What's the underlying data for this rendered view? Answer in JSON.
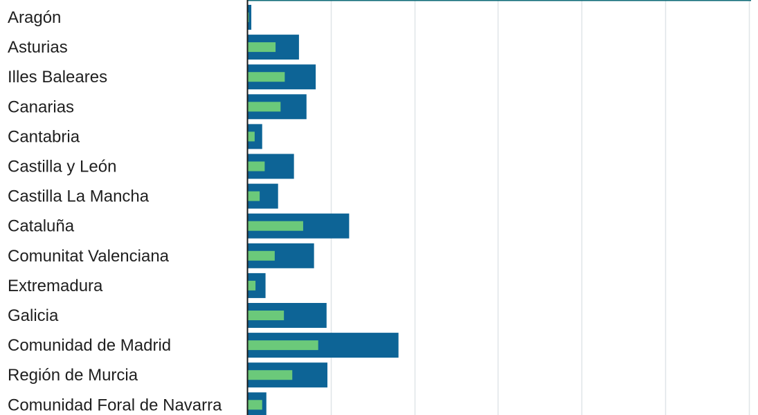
{
  "chart_data": {
    "type": "bar",
    "orientation": "horizontal",
    "categories": [
      "Aragón",
      "Asturias",
      "Illes Baleares",
      "Canarias",
      "Cantabria",
      "Castilla y León",
      "Castilla La Mancha",
      "Cataluña",
      "Comunitat Valenciana",
      "Extremadura",
      "Galicia",
      "Comunidad de Madrid",
      "Región de Murcia",
      "Comunidad Foral de Navarra"
    ],
    "series": [
      {
        "values": [
          0.5,
          6.2,
          8.2,
          7.1,
          1.8,
          5.6,
          3.7,
          12.2,
          8.0,
          2.2,
          9.5,
          18.1,
          9.6,
          2.3
        ],
        "color": "#0d6496"
      },
      {
        "values": [
          0.2,
          3.4,
          4.5,
          4.0,
          0.9,
          2.1,
          1.5,
          6.7,
          3.3,
          1.0,
          4.4,
          8.5,
          5.4,
          1.8
        ],
        "color": "#6bc97a"
      }
    ],
    "xlim": [
      0,
      60
    ],
    "grid": true,
    "gridlines_x": [
      10,
      20,
      30,
      40,
      50,
      60
    ],
    "colors": {
      "grid": "#dfe5e8",
      "axis": "#1a1a1a",
      "top_rule": "#0f6b78",
      "label": "#1f1f1f"
    }
  }
}
